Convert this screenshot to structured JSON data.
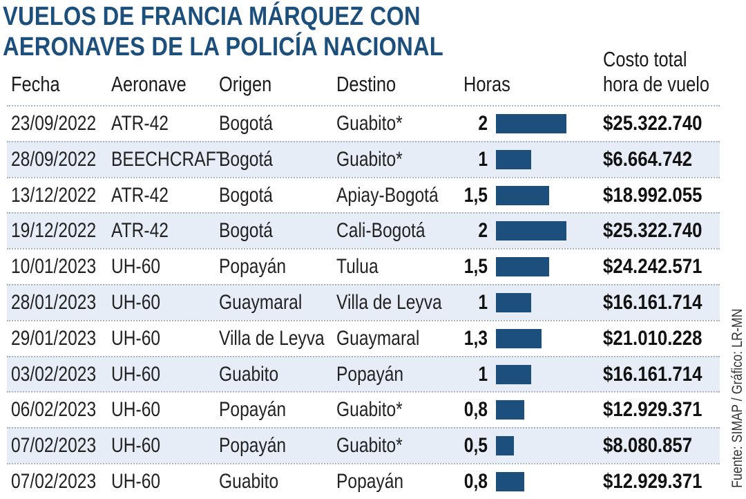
{
  "chart_data": {
    "type": "table",
    "title": "VUELOS DE FRANCIA MÁRQUEZ CON AERONAVES DE LA POLICÍA NACIONAL",
    "columns": {
      "fecha": "Fecha",
      "aeronave": "Aeronave",
      "origen": "Origen",
      "destino": "Destino",
      "horas": "Horas",
      "costo_line1": "Costo total",
      "costo_line2": "hora de vuelo"
    },
    "rows": [
      {
        "fecha": "23/09/2022",
        "aeronave": "ATR-42",
        "origen": "Bogotá",
        "destino": "Guabito*",
        "horas": "2",
        "hours_value": 2,
        "costo": "$25.322.740"
      },
      {
        "fecha": "28/09/2022",
        "aeronave": "BEECHCRAFT",
        "origen": "Bogotá",
        "destino": "Guabito*",
        "horas": "1",
        "hours_value": 1,
        "costo": "$6.664.742"
      },
      {
        "fecha": "13/12/2022",
        "aeronave": "ATR-42",
        "origen": "Bogotá",
        "destino": "Apiay-Bogotá",
        "horas": "1,5",
        "hours_value": 1.5,
        "costo": "$18.992.055"
      },
      {
        "fecha": "19/12/2022",
        "aeronave": "ATR-42",
        "origen": "Bogotá",
        "destino": "Cali-Bogotá",
        "horas": "2",
        "hours_value": 2,
        "costo": "$25.322.740"
      },
      {
        "fecha": "10/01/2023",
        "aeronave": "UH-60",
        "origen": "Popayán",
        "destino": "Tulua",
        "horas": "1,5",
        "hours_value": 1.5,
        "costo": "$24.242.571"
      },
      {
        "fecha": "28/01/2023",
        "aeronave": "UH-60",
        "origen": "Guaymaral",
        "destino": "Villa de Leyva",
        "horas": "1",
        "hours_value": 1,
        "costo": "$16.161.714"
      },
      {
        "fecha": "29/01/2023",
        "aeronave": "UH-60",
        "origen": "Villa de Leyva",
        "destino": "Guaymaral",
        "horas": "1,3",
        "hours_value": 1.3,
        "costo": "$21.010.228"
      },
      {
        "fecha": "03/02/2023",
        "aeronave": "UH-60",
        "origen": "Guabito",
        "destino": "Popayán",
        "horas": "1",
        "hours_value": 1,
        "costo": "$16.161.714"
      },
      {
        "fecha": "06/02/2023",
        "aeronave": "UH-60",
        "origen": "Popayán",
        "destino": "Guabito*",
        "horas": "0,8",
        "hours_value": 0.8,
        "costo": "$12.929.371"
      },
      {
        "fecha": "07/02/2023",
        "aeronave": "UH-60",
        "origen": "Popayán",
        "destino": "Guabito*",
        "horas": "0,5",
        "hours_value": 0.5,
        "costo": "$8.080.857"
      },
      {
        "fecha": "07/02/2023",
        "aeronave": "UH-60",
        "origen": "Guabito",
        "destino": "Popayán",
        "horas": "0,8",
        "hours_value": 0.8,
        "costo": "$12.929.371"
      }
    ],
    "hours_max": 2,
    "bar_color": "#1d4f7c",
    "stripe_color": "#e6edf6",
    "source": "Fuente: SIMAP / Gráfico: LR-MN"
  }
}
